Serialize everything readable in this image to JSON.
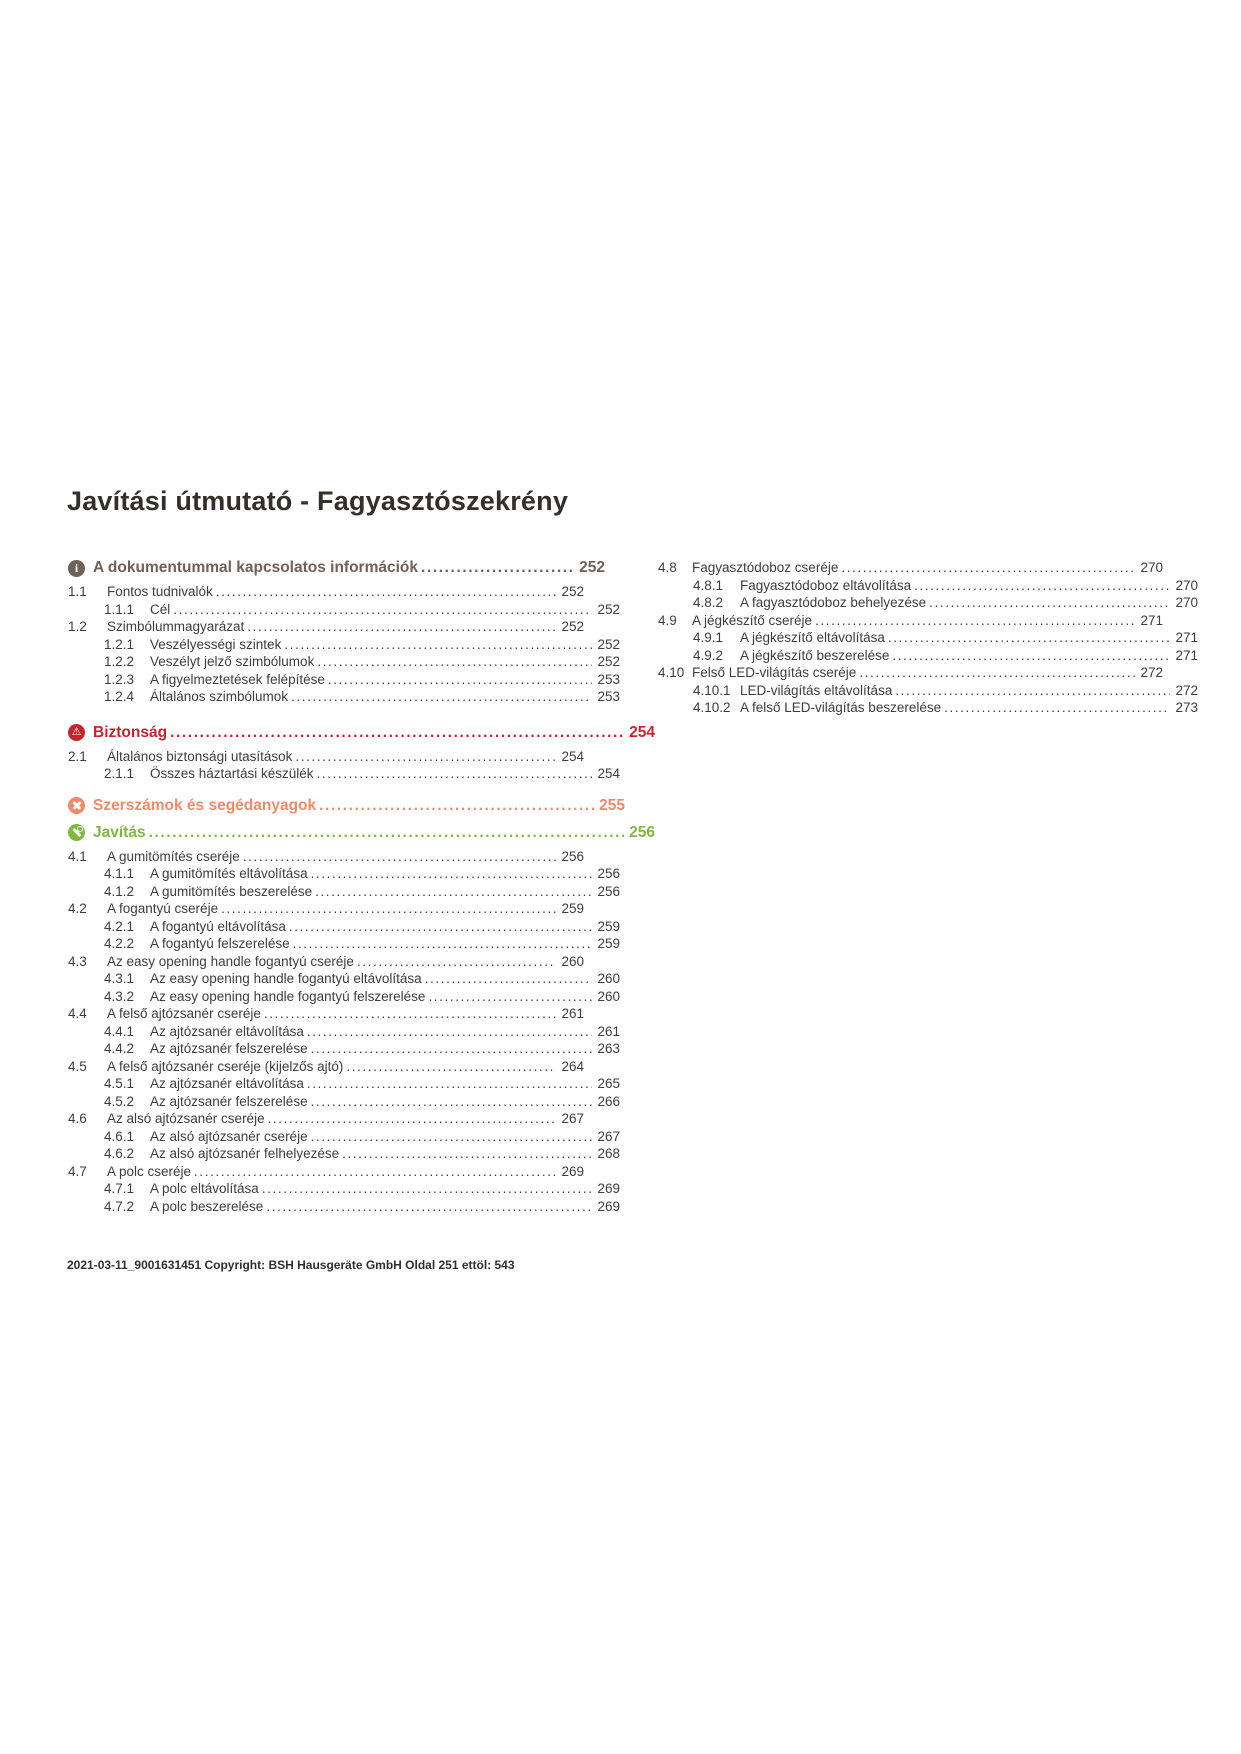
{
  "page": {
    "title": "Javítási útmutató - Fagyasztószekrény",
    "footer": "2021-03-11_9001631451 Copyright: BSH Hausgeräte GmbH Oldal 251 ettöl: 543"
  },
  "colors": {
    "info_section": "#6e6258",
    "safety_section": "#c9242b",
    "tools_section": "#f28a6a",
    "repair_section": "#7eba3e",
    "body_text": "#3d3d3d"
  },
  "toc": {
    "left": [
      {
        "type": "heading",
        "style": "info",
        "icon": "info-icon",
        "label": "A dokumentummal kapcsolatos információk",
        "page": "252"
      },
      {
        "type": "item2",
        "num": "1.1",
        "label": "Fontos tudnivalók",
        "page": "252"
      },
      {
        "type": "item3",
        "num": "1.1.1",
        "label": "Cél",
        "page": "252"
      },
      {
        "type": "item2",
        "num": "1.2",
        "label": "Szimbólummagyarázat",
        "page": "252"
      },
      {
        "type": "item3",
        "num": "1.2.1",
        "label": "Veszélyességi szintek",
        "page": "252"
      },
      {
        "type": "item3",
        "num": "1.2.2",
        "label": "Veszélyt jelző szimbólumok",
        "page": "252"
      },
      {
        "type": "item3",
        "num": "1.2.3",
        "label": "A figyelmeztetések felépítése",
        "page": "253"
      },
      {
        "type": "item3",
        "num": "1.2.4",
        "label": "Általános szimbólumok",
        "page": "253"
      },
      {
        "type": "heading",
        "style": "safety",
        "icon": "warning-icon",
        "label": "Biztonság",
        "page": "254"
      },
      {
        "type": "item2",
        "num": "2.1",
        "label": "Általános biztonsági utasítások",
        "page": "254"
      },
      {
        "type": "item3",
        "num": "2.1.1",
        "label": "Összes háztartási készülék",
        "page": "254"
      },
      {
        "type": "heading",
        "style": "tools",
        "icon": "tools-icon",
        "label": "Szerszámok és segédanyagok",
        "page": "255"
      },
      {
        "type": "heading",
        "style": "repair",
        "icon": "wrench-icon",
        "label": "Javítás",
        "page": "256"
      },
      {
        "type": "item2",
        "num": "4.1",
        "label": "A gumitömítés cseréje",
        "page": "256"
      },
      {
        "type": "item3",
        "num": "4.1.1",
        "label": "A gumitömítés eltávolítása",
        "page": "256"
      },
      {
        "type": "item3",
        "num": "4.1.2",
        "label": "A gumitömítés beszerelése",
        "page": "256"
      },
      {
        "type": "item2",
        "num": "4.2",
        "label": "A fogantyú cseréje",
        "page": "259"
      },
      {
        "type": "item3",
        "num": "4.2.1",
        "label": "A fogantyú eltávolítása",
        "page": "259"
      },
      {
        "type": "item3",
        "num": "4.2.2",
        "label": "A fogantyú felszerelése",
        "page": "259"
      },
      {
        "type": "item2",
        "num": "4.3",
        "label": "Az easy opening handle fogantyú cseréje",
        "page": "260"
      },
      {
        "type": "item3",
        "num": "4.3.1",
        "label": "Az easy opening handle fogantyú eltávolítása",
        "page": "260"
      },
      {
        "type": "item3",
        "num": "4.3.2",
        "label": "Az easy opening handle fogantyú felszerelése",
        "page": "260"
      },
      {
        "type": "item2",
        "num": "4.4",
        "label": "A felső ajtózsanér cseréje",
        "page": "261"
      },
      {
        "type": "item3",
        "num": "4.4.1",
        "label": "Az ajtózsanér eltávolítása",
        "page": "261"
      },
      {
        "type": "item3",
        "num": "4.4.2",
        "label": "Az ajtózsanér felszerelése",
        "page": "263"
      },
      {
        "type": "item2",
        "num": "4.5",
        "label": "A felső ajtózsanér cseréje (kijelzős ajtó)",
        "page": "264"
      },
      {
        "type": "item3",
        "num": "4.5.1",
        "label": "Az ajtózsanér eltávolítása",
        "page": "265"
      },
      {
        "type": "item3",
        "num": "4.5.2",
        "label": "Az ajtózsanér felszerelése",
        "page": "266"
      },
      {
        "type": "item2",
        "num": "4.6",
        "label": "Az alsó ajtózsanér cseréje",
        "page": "267"
      },
      {
        "type": "item3",
        "num": "4.6.1",
        "label": "Az alsó ajtózsanér cseréje",
        "page": "267"
      },
      {
        "type": "item3",
        "num": "4.6.2",
        "label": "Az alsó ajtózsanér felhelyezése",
        "page": "268"
      },
      {
        "type": "item2",
        "num": "4.7",
        "label": "A polc cseréje",
        "page": "269"
      },
      {
        "type": "item3",
        "num": "4.7.1",
        "label": "A polc eltávolítása",
        "page": "269"
      },
      {
        "type": "item3",
        "num": "4.7.2",
        "label": "A polc beszerelése",
        "page": "269"
      }
    ],
    "right": [
      {
        "type": "item2",
        "num": "4.8",
        "label": "Fagyasztódoboz cseréje",
        "page": "270"
      },
      {
        "type": "item3",
        "num": "4.8.1",
        "label": "Fagyasztódoboz eltávolítása",
        "page": "270"
      },
      {
        "type": "item3",
        "num": "4.8.2",
        "label": "A fagyasztódoboz behelyezése",
        "page": "270"
      },
      {
        "type": "item2",
        "num": "4.9",
        "label": "A jégkészítő cseréje",
        "page": "271"
      },
      {
        "type": "item3",
        "num": "4.9.1",
        "label": "A jégkészítő eltávolítása",
        "page": "271"
      },
      {
        "type": "item3",
        "num": "4.9.2",
        "label": "A jégkészítő beszerelése",
        "page": "271"
      },
      {
        "type": "item2",
        "num": "4.10",
        "label": "Felső LED-világítás cseréje",
        "page": "272"
      },
      {
        "type": "item3",
        "num": "4.10.1",
        "label": "LED-világítás eltávolítása",
        "page": "272"
      },
      {
        "type": "item3",
        "num": "4.10.2",
        "label": "A felső LED-világítás beszerelése",
        "page": "273"
      }
    ]
  }
}
